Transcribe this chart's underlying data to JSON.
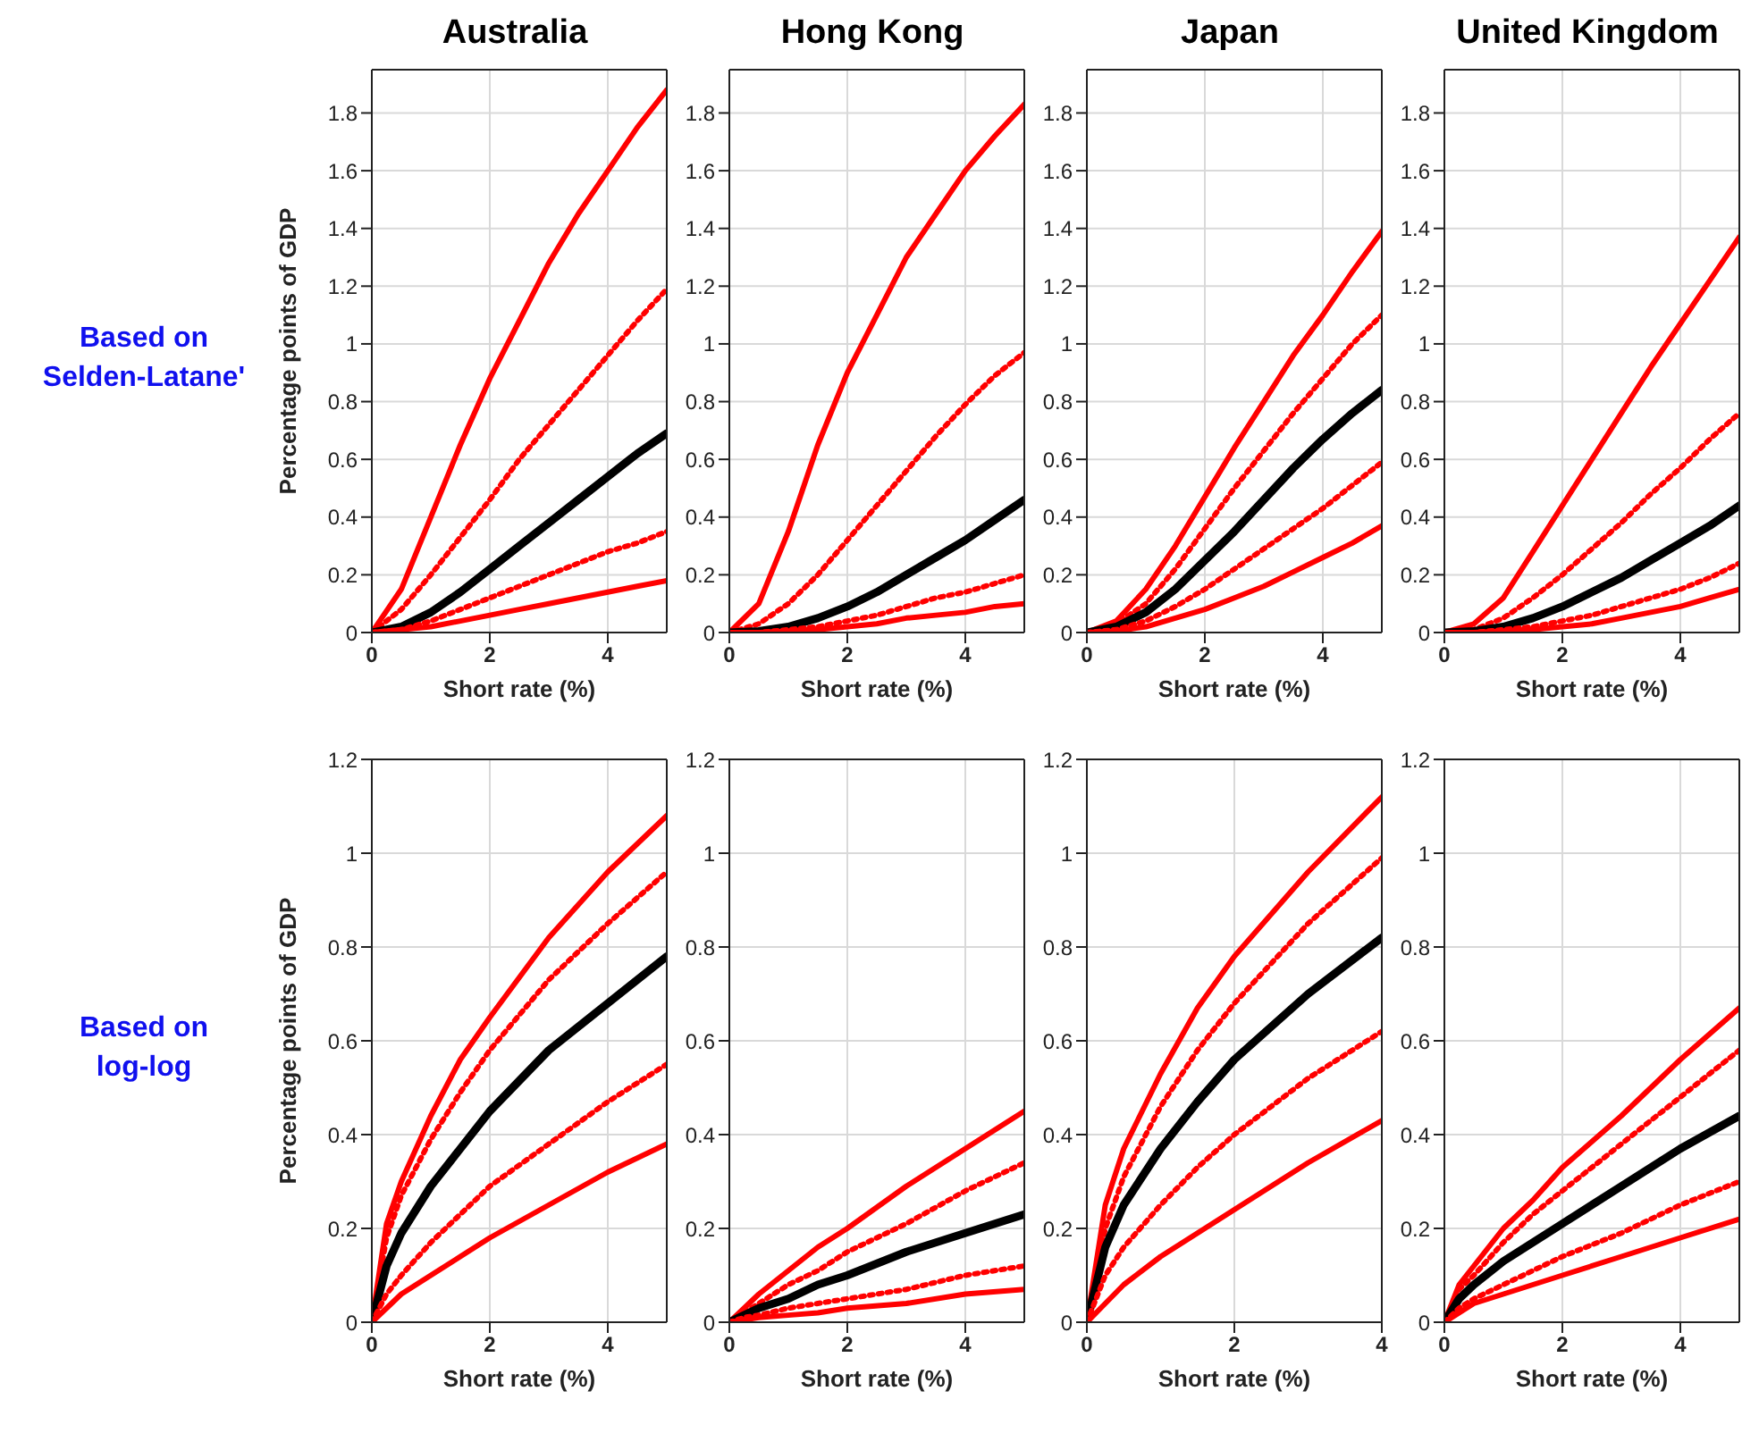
{
  "chart_data": [
    {
      "type": "line",
      "title": "Australia",
      "ylabel": "Percentage points of GDP",
      "xlabel": "Short rate (%)",
      "annotations": [
        "Based on Selden-Latane'"
      ],
      "xlim": [
        0,
        5
      ],
      "xticks": [
        0,
        2,
        4
      ],
      "ylim": [
        0,
        1.95
      ],
      "yticks": [
        0,
        0.2,
        0.4,
        0.6,
        0.8,
        1,
        1.2,
        1.4,
        1.6,
        1.8
      ],
      "grid": true,
      "marker": "none",
      "x": [
        0,
        0.5,
        1,
        1.5,
        2,
        2.5,
        3,
        3.5,
        4,
        4.5,
        5
      ],
      "series": [
        {
          "color": "#ff0000",
          "line_style": "solid",
          "values": [
            0,
            0.15,
            0.4,
            0.65,
            0.88,
            1.08,
            1.28,
            1.45,
            1.6,
            1.75,
            1.88
          ]
        },
        {
          "color": "#ff0000",
          "line_style": "dotted",
          "values": [
            0,
            0.08,
            0.2,
            0.33,
            0.46,
            0.6,
            0.72,
            0.84,
            0.96,
            1.08,
            1.19
          ]
        },
        {
          "color": "#000000",
          "line_style": "solid",
          "values": [
            0,
            0.02,
            0.07,
            0.14,
            0.22,
            0.3,
            0.38,
            0.46,
            0.54,
            0.62,
            0.69
          ]
        },
        {
          "color": "#ff0000",
          "line_style": "dotted",
          "values": [
            0,
            0.01,
            0.04,
            0.08,
            0.12,
            0.16,
            0.2,
            0.24,
            0.28,
            0.31,
            0.35
          ]
        },
        {
          "color": "#ff0000",
          "line_style": "solid",
          "values": [
            0,
            0.01,
            0.02,
            0.04,
            0.06,
            0.08,
            0.1,
            0.12,
            0.14,
            0.16,
            0.18
          ]
        }
      ]
    },
    {
      "type": "line",
      "title": "Hong Kong",
      "xlabel": "Short rate (%)",
      "xlim": [
        0,
        5
      ],
      "xticks": [
        0,
        2,
        4
      ],
      "ylim": [
        0,
        1.95
      ],
      "yticks": [
        0,
        0.2,
        0.4,
        0.6,
        0.8,
        1,
        1.2,
        1.4,
        1.6,
        1.8
      ],
      "grid": true,
      "marker": "none",
      "x": [
        0,
        0.5,
        1,
        1.5,
        2,
        2.5,
        3,
        3.5,
        4,
        4.5,
        5
      ],
      "series": [
        {
          "color": "#ff0000",
          "line_style": "solid",
          "values": [
            0,
            0.1,
            0.35,
            0.65,
            0.9,
            1.1,
            1.3,
            1.45,
            1.6,
            1.72,
            1.83
          ]
        },
        {
          "color": "#ff0000",
          "line_style": "dotted",
          "values": [
            0,
            0.03,
            0.1,
            0.2,
            0.32,
            0.44,
            0.56,
            0.68,
            0.79,
            0.89,
            0.97
          ]
        },
        {
          "color": "#000000",
          "line_style": "solid",
          "values": [
            0,
            0.005,
            0.02,
            0.05,
            0.09,
            0.14,
            0.2,
            0.26,
            0.32,
            0.39,
            0.46
          ]
        },
        {
          "color": "#ff0000",
          "line_style": "dotted",
          "values": [
            0,
            0,
            0.01,
            0.02,
            0.04,
            0.06,
            0.09,
            0.12,
            0.14,
            0.17,
            0.2
          ]
        },
        {
          "color": "#ff0000",
          "line_style": "solid",
          "values": [
            0,
            0,
            0.005,
            0.01,
            0.02,
            0.03,
            0.05,
            0.06,
            0.07,
            0.09,
            0.1
          ]
        }
      ]
    },
    {
      "type": "line",
      "title": "Japan",
      "xlabel": "Short rate (%)",
      "xlim": [
        0,
        5
      ],
      "xticks": [
        0,
        2,
        4
      ],
      "ylim": [
        0,
        1.95
      ],
      "yticks": [
        0,
        0.2,
        0.4,
        0.6,
        0.8,
        1,
        1.2,
        1.4,
        1.6,
        1.8
      ],
      "grid": true,
      "marker": "none",
      "x": [
        0,
        0.5,
        1,
        1.5,
        2,
        2.5,
        3,
        3.5,
        4,
        4.5,
        5
      ],
      "series": [
        {
          "color": "#ff0000",
          "line_style": "solid",
          "values": [
            0,
            0.04,
            0.15,
            0.3,
            0.47,
            0.64,
            0.8,
            0.96,
            1.1,
            1.25,
            1.39
          ]
        },
        {
          "color": "#ff0000",
          "line_style": "dotted",
          "values": [
            0,
            0.03,
            0.1,
            0.22,
            0.36,
            0.5,
            0.63,
            0.76,
            0.88,
            1.0,
            1.1
          ]
        },
        {
          "color": "#000000",
          "line_style": "solid",
          "values": [
            0,
            0.02,
            0.07,
            0.15,
            0.25,
            0.35,
            0.46,
            0.57,
            0.67,
            0.76,
            0.84
          ]
        },
        {
          "color": "#ff0000",
          "line_style": "dotted",
          "values": [
            0,
            0.01,
            0.04,
            0.09,
            0.15,
            0.22,
            0.29,
            0.36,
            0.43,
            0.51,
            0.59
          ]
        },
        {
          "color": "#ff0000",
          "line_style": "solid",
          "values": [
            0,
            0.005,
            0.02,
            0.05,
            0.08,
            0.12,
            0.16,
            0.21,
            0.26,
            0.31,
            0.37
          ]
        }
      ]
    },
    {
      "type": "line",
      "title": "United Kingdom",
      "xlabel": "Short rate (%)",
      "xlim": [
        0,
        5
      ],
      "xticks": [
        0,
        2,
        4
      ],
      "ylim": [
        0,
        1.95
      ],
      "yticks": [
        0,
        0.2,
        0.4,
        0.6,
        0.8,
        1,
        1.2,
        1.4,
        1.6,
        1.8
      ],
      "grid": true,
      "marker": "none",
      "x": [
        0,
        0.5,
        1,
        1.5,
        2,
        2.5,
        3,
        3.5,
        4,
        4.5,
        5
      ],
      "series": [
        {
          "color": "#ff0000",
          "line_style": "solid",
          "values": [
            0,
            0.03,
            0.12,
            0.28,
            0.44,
            0.6,
            0.76,
            0.92,
            1.07,
            1.22,
            1.37
          ]
        },
        {
          "color": "#ff0000",
          "line_style": "dotted",
          "values": [
            0,
            0.01,
            0.05,
            0.12,
            0.2,
            0.29,
            0.38,
            0.48,
            0.57,
            0.67,
            0.76
          ]
        },
        {
          "color": "#000000",
          "line_style": "solid",
          "values": [
            0,
            0.005,
            0.02,
            0.05,
            0.09,
            0.14,
            0.19,
            0.25,
            0.31,
            0.37,
            0.44
          ]
        },
        {
          "color": "#ff0000",
          "line_style": "dotted",
          "values": [
            0,
            0,
            0.01,
            0.02,
            0.04,
            0.06,
            0.09,
            0.12,
            0.15,
            0.19,
            0.24
          ]
        },
        {
          "color": "#ff0000",
          "line_style": "solid",
          "values": [
            0,
            0,
            0.005,
            0.01,
            0.02,
            0.03,
            0.05,
            0.07,
            0.09,
            0.12,
            0.15
          ]
        }
      ]
    },
    {
      "type": "line",
      "ylabel": "Percentage points of GDP",
      "xlabel": "Short rate (%)",
      "annotations": [
        "Based on log-log"
      ],
      "xlim": [
        0,
        5
      ],
      "xticks": [
        0,
        2,
        4
      ],
      "ylim": [
        0,
        1.2
      ],
      "yticks": [
        0,
        0.2,
        0.4,
        0.6,
        0.8,
        1,
        1.2
      ],
      "grid": true,
      "marker": "none",
      "x": [
        0,
        0.25,
        0.5,
        1,
        1.5,
        2,
        3,
        4,
        5
      ],
      "series": [
        {
          "color": "#ff0000",
          "line_style": "solid",
          "values": [
            0,
            0.21,
            0.3,
            0.44,
            0.56,
            0.65,
            0.82,
            0.96,
            1.08
          ]
        },
        {
          "color": "#ff0000",
          "line_style": "dotted",
          "values": [
            0,
            0.18,
            0.27,
            0.39,
            0.49,
            0.58,
            0.73,
            0.85,
            0.96
          ]
        },
        {
          "color": "#000000",
          "line_style": "solid",
          "values": [
            0,
            0.12,
            0.19,
            0.29,
            0.37,
            0.45,
            0.58,
            0.68,
            0.78
          ]
        },
        {
          "color": "#ff0000",
          "line_style": "dotted",
          "values": [
            0,
            0.06,
            0.1,
            0.17,
            0.23,
            0.29,
            0.38,
            0.47,
            0.55
          ]
        },
        {
          "color": "#ff0000",
          "line_style": "solid",
          "values": [
            0,
            0.03,
            0.06,
            0.1,
            0.14,
            0.18,
            0.25,
            0.32,
            0.38
          ]
        }
      ]
    },
    {
      "type": "line",
      "xlabel": "Short rate (%)",
      "xlim": [
        0,
        5
      ],
      "xticks": [
        0,
        2,
        4
      ],
      "ylim": [
        0,
        1.2
      ],
      "yticks": [
        0,
        0.2,
        0.4,
        0.6,
        0.8,
        1,
        1.2
      ],
      "grid": true,
      "marker": "none",
      "x": [
        0,
        0.25,
        0.5,
        1,
        1.5,
        2,
        3,
        4,
        5
      ],
      "series": [
        {
          "color": "#ff0000",
          "line_style": "solid",
          "values": [
            0,
            0.03,
            0.06,
            0.11,
            0.16,
            0.2,
            0.29,
            0.37,
            0.45
          ]
        },
        {
          "color": "#ff0000",
          "line_style": "dotted",
          "values": [
            0,
            0.02,
            0.04,
            0.08,
            0.11,
            0.15,
            0.21,
            0.28,
            0.34
          ]
        },
        {
          "color": "#000000",
          "line_style": "solid",
          "values": [
            0,
            0.015,
            0.03,
            0.05,
            0.08,
            0.1,
            0.15,
            0.19,
            0.23
          ]
        },
        {
          "color": "#ff0000",
          "line_style": "dotted",
          "values": [
            0,
            0.01,
            0.015,
            0.03,
            0.04,
            0.05,
            0.07,
            0.1,
            0.12
          ]
        },
        {
          "color": "#ff0000",
          "line_style": "solid",
          "values": [
            0,
            0.005,
            0.01,
            0.015,
            0.02,
            0.03,
            0.04,
            0.06,
            0.07
          ]
        }
      ]
    },
    {
      "type": "line",
      "xlabel": "Short rate (%)",
      "xlim": [
        0,
        4
      ],
      "xticks": [
        0,
        2,
        4
      ],
      "ylim": [
        0,
        1.2
      ],
      "yticks": [
        0,
        0.2,
        0.4,
        0.6,
        0.8,
        1,
        1.2
      ],
      "grid": true,
      "marker": "none",
      "x": [
        0,
        0.25,
        0.5,
        1,
        1.5,
        2,
        3,
        4
      ],
      "series": [
        {
          "color": "#ff0000",
          "line_style": "solid",
          "values": [
            0,
            0.25,
            0.37,
            0.53,
            0.67,
            0.78,
            0.96,
            1.12
          ]
        },
        {
          "color": "#ff0000",
          "line_style": "dotted",
          "values": [
            0,
            0.2,
            0.31,
            0.46,
            0.58,
            0.68,
            0.85,
            0.99
          ]
        },
        {
          "color": "#000000",
          "line_style": "solid",
          "values": [
            0,
            0.16,
            0.25,
            0.37,
            0.47,
            0.56,
            0.7,
            0.82
          ]
        },
        {
          "color": "#ff0000",
          "line_style": "dotted",
          "values": [
            0,
            0.1,
            0.16,
            0.25,
            0.33,
            0.4,
            0.52,
            0.62
          ]
        },
        {
          "color": "#ff0000",
          "line_style": "solid",
          "values": [
            0,
            0.04,
            0.08,
            0.14,
            0.19,
            0.24,
            0.34,
            0.43
          ]
        }
      ]
    },
    {
      "type": "line",
      "xlabel": "Short rate (%)",
      "xlim": [
        0,
        5
      ],
      "xticks": [
        0,
        2,
        4
      ],
      "ylim": [
        0,
        1.2
      ],
      "yticks": [
        0,
        0.2,
        0.4,
        0.6,
        0.8,
        1,
        1.2
      ],
      "grid": true,
      "marker": "none",
      "x": [
        0,
        0.25,
        0.5,
        1,
        1.5,
        2,
        3,
        4,
        5
      ],
      "series": [
        {
          "color": "#ff0000",
          "line_style": "solid",
          "values": [
            0,
            0.08,
            0.12,
            0.2,
            0.26,
            0.33,
            0.44,
            0.56,
            0.67
          ]
        },
        {
          "color": "#ff0000",
          "line_style": "dotted",
          "values": [
            0,
            0.07,
            0.1,
            0.17,
            0.23,
            0.28,
            0.38,
            0.48,
            0.58
          ]
        },
        {
          "color": "#000000",
          "line_style": "solid",
          "values": [
            0,
            0.05,
            0.08,
            0.13,
            0.17,
            0.21,
            0.29,
            0.37,
            0.44
          ]
        },
        {
          "color": "#ff0000",
          "line_style": "dotted",
          "values": [
            0,
            0.03,
            0.05,
            0.08,
            0.11,
            0.14,
            0.19,
            0.25,
            0.3
          ]
        },
        {
          "color": "#ff0000",
          "line_style": "solid",
          "values": [
            0,
            0.02,
            0.04,
            0.06,
            0.08,
            0.1,
            0.14,
            0.18,
            0.22
          ]
        }
      ]
    }
  ]
}
